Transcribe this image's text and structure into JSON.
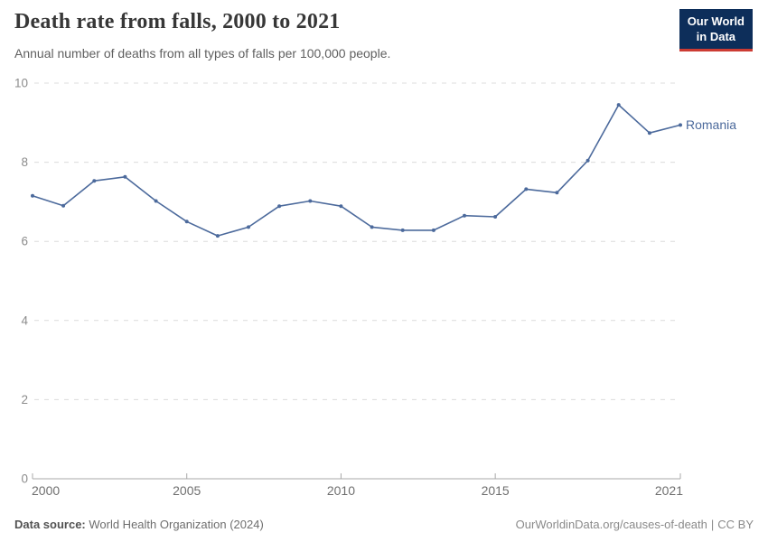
{
  "header": {
    "title": "Death rate from falls, 2000 to 2021",
    "subtitle": "Annual number of deaths from all types of falls per 100,000 people.",
    "logo": {
      "line1": "Our World",
      "line2": "in Data"
    }
  },
  "chart_data": {
    "type": "line",
    "title": "Death rate from falls, 2000 to 2021",
    "subtitle": "Annual number of deaths from all types of falls per 100,000 people.",
    "x": [
      2000,
      2001,
      2002,
      2003,
      2004,
      2005,
      2006,
      2007,
      2008,
      2009,
      2010,
      2011,
      2012,
      2013,
      2014,
      2015,
      2016,
      2017,
      2018,
      2019,
      2020,
      2021
    ],
    "series": [
      {
        "name": "Romania",
        "color": "#4c6a9c",
        "values": [
          7.15,
          6.9,
          7.53,
          7.63,
          7.02,
          6.5,
          6.14,
          6.36,
          6.89,
          7.02,
          6.89,
          6.36,
          6.28,
          6.28,
          6.65,
          6.62,
          7.32,
          7.23,
          8.04,
          9.45,
          8.74,
          8.94
        ]
      }
    ],
    "xlabel": "",
    "ylabel": "",
    "xlim": [
      2000,
      2021
    ],
    "ylim": [
      0,
      10
    ],
    "xticks": [
      2000,
      2005,
      2010,
      2015,
      2021
    ],
    "yticks": [
      0,
      2,
      4,
      6,
      8,
      10
    ],
    "grid": "horizontal-dashed",
    "legend": "end-of-line-label"
  },
  "footer": {
    "source_label": "Data source:",
    "source_value": " World Health Organization (2024)",
    "link": "OurWorldinData.org/causes-of-death",
    "separator": "|",
    "license": "CC BY"
  },
  "colors": {
    "line": "#4c6a9c",
    "grid": "#dcdcdc",
    "axis": "#a8a8a8",
    "ytick_text": "#8c8c8c",
    "xtick_text": "#6f6f6f",
    "logo_bg": "#0d2e5a",
    "logo_bar": "#cc3b33"
  }
}
